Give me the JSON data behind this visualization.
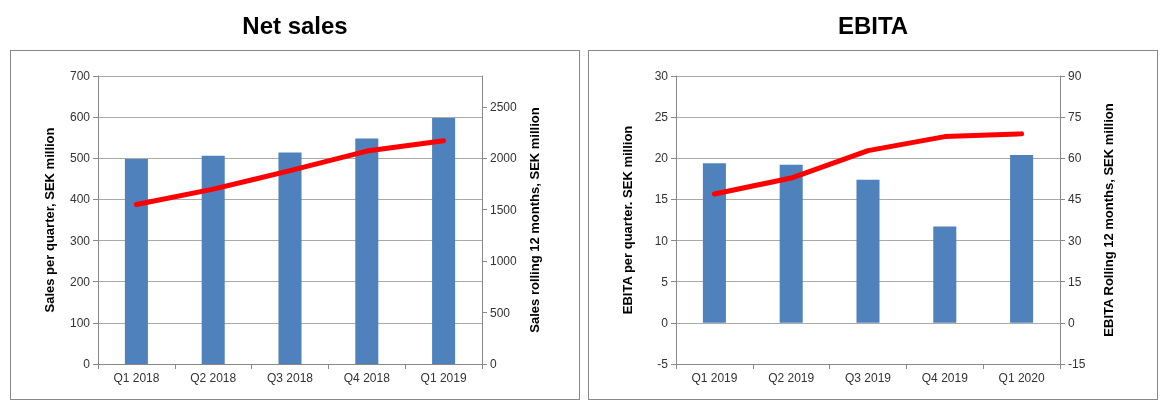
{
  "chart_data": [
    {
      "type": "bar",
      "title": "Net sales",
      "ylabel": "Sales per quarter, SEK million",
      "y2label": "Sales rolling 12 months, SEK million",
      "categories": [
        "Q1 2018",
        "Q2 2018",
        "Q3 2018",
        "Q4 2018",
        "Q1 2019"
      ],
      "series": [
        {
          "color": "#4f81bd",
          "values": [
            498,
            506,
            514,
            548,
            598
          ]
        },
        {
          "type": "line",
          "axis": "y2",
          "color": "#ff0000",
          "values": [
            1550,
            1700,
            1880,
            2070,
            2170
          ]
        }
      ],
      "ylim": [
        0,
        700
      ],
      "yticks": [
        0,
        100,
        200,
        300,
        400,
        500,
        600,
        700
      ],
      "y2lim": [
        0,
        2800
      ],
      "y2ticks": [
        0,
        500,
        1000,
        1500,
        2000,
        2500
      ],
      "grid": "y",
      "marker": "none",
      "line_style": "solid"
    },
    {
      "type": "bar",
      "title": "EBITA",
      "ylabel": "EBITA per quarter. SEK million",
      "y2label": "EBITA Rolling 12 months, SEK million",
      "categories": [
        "Q1 2019",
        "Q2 2019",
        "Q3 2019",
        "Q4 2019",
        "Q1 2020"
      ],
      "series": [
        {
          "color": "#4f81bd",
          "values": [
            19.4,
            19.2,
            17.4,
            11.7,
            20.4
          ]
        },
        {
          "type": "line",
          "axis": "y2",
          "color": "#ff0000",
          "values": [
            47,
            52.8,
            62.8,
            67.9,
            68.9
          ]
        }
      ],
      "ylim": [
        -5,
        30
      ],
      "yticks": [
        -5,
        0,
        5,
        10,
        15,
        20,
        25,
        30
      ],
      "y2lim": [
        -15,
        90
      ],
      "y2ticks": [
        -15,
        0,
        15,
        30,
        45,
        60,
        75,
        90
      ],
      "grid": "y",
      "marker": "none",
      "line_style": "solid"
    }
  ]
}
